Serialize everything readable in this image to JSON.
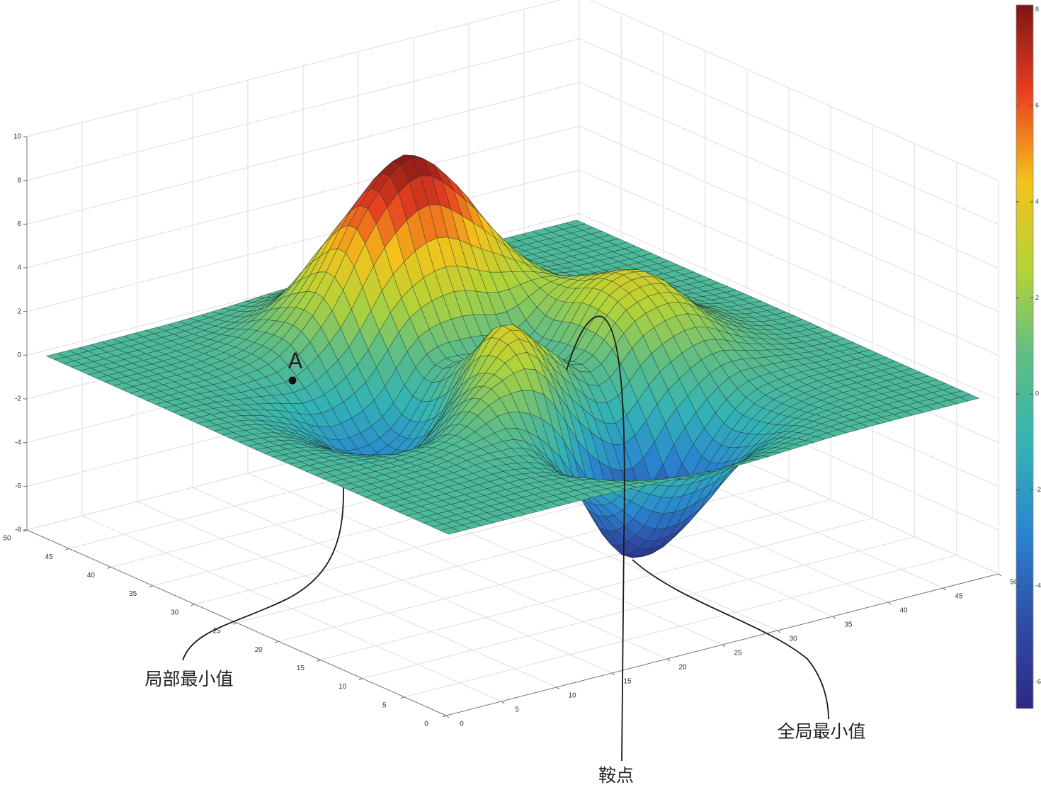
{
  "chart_data": {
    "type": "surface",
    "x": [
      1,
      5,
      9,
      13,
      17,
      21,
      25,
      29,
      33,
      37,
      41,
      45,
      49
    ],
    "y": [
      1,
      5,
      9,
      13,
      17,
      21,
      25,
      29,
      33,
      37,
      41,
      45,
      49
    ],
    "z": [
      [
        0,
        0,
        0,
        0,
        -0.03,
        -0.14,
        -0.24,
        -0.22,
        -0.11,
        -0.03,
        0,
        0,
        0
      ],
      [
        0,
        0,
        0.01,
        0,
        -0.23,
        -0.91,
        -1.57,
        -1.41,
        -0.69,
        -0.18,
        -0.03,
        0,
        0
      ],
      [
        0,
        0.01,
        0.05,
        0.05,
        -0.59,
        -2.63,
        -4.75,
        -4.34,
        -2.1,
        -0.53,
        -0.06,
        0,
        0
      ],
      [
        0,
        0.01,
        0.08,
        0.33,
        0.15,
        -2.19,
        -5.68,
        -5.76,
        -2.63,
        -0.44,
        0.04,
        0.03,
        0
      ],
      [
        -0.01,
        -0.06,
        -0.13,
        0.3,
        1.86,
        2.22,
        -0.72,
        -2.22,
        -0.27,
        0.88,
        0.5,
        0.11,
        0.01
      ],
      [
        -0.03,
        -0.2,
        -0.8,
        -1.21,
        0.8,
        3.55,
        2,
        0.39,
        2.2,
        2.56,
        1.12,
        0.24,
        0.03
      ],
      [
        -0.04,
        -0.3,
        -1.33,
        -2.77,
        -1.65,
        1.48,
        0.98,
        0.37,
        2.94,
        3.27,
        1.41,
        0.3,
        0.03
      ],
      [
        -0.03,
        -0.25,
        -1.12,
        -2.49,
        -2,
        0.39,
        0.46,
        0.38,
        2.38,
        2.56,
        1.09,
        0.23,
        0.03
      ],
      [
        -0.01,
        -0.11,
        -0.48,
        -0.86,
        0.23,
        2.79,
        3.69,
        2.93,
        2.43,
        1.58,
        0.58,
        0.11,
        0.01
      ],
      [
        0,
        -0.02,
        -0.01,
        0.48,
        2.61,
        6.2,
        8,
        6.25,
        3.25,
        1.19,
        0.29,
        0.05,
        0
      ],
      [
        0,
        0.01,
        0.08,
        0.55,
        2.09,
        4.55,
        5.85,
        4.56,
        2.21,
        0.68,
        0.13,
        0.02,
        0
      ],
      [
        0,
        0,
        0.03,
        0.19,
        0.69,
        1.47,
        1.88,
        1.47,
        0.7,
        0.21,
        0.04,
        0,
        0
      ],
      [
        0,
        0,
        0.01,
        0.03,
        0.11,
        0.23,
        0.3,
        0.23,
        0.11,
        0.03,
        0.01,
        0,
        0
      ]
    ],
    "xlim": [
      0,
      50
    ],
    "ylim": [
      0,
      50
    ],
    "zlim": [
      -8,
      10
    ],
    "xticks": [
      0,
      5,
      10,
      15,
      20,
      25,
      30,
      35,
      40,
      45,
      50
    ],
    "yticks": [
      0,
      5,
      10,
      15,
      20,
      25,
      30,
      35,
      40,
      45,
      50
    ],
    "zticks": [
      -8,
      -6,
      -4,
      -2,
      0,
      2,
      4,
      6,
      8,
      10
    ],
    "clim": [
      -6.55,
      8.1
    ],
    "colorbar_ticks": [
      -6,
      -4,
      -2,
      0,
      2,
      4,
      6,
      8
    ],
    "colormap": [
      "#2c2a86",
      "#2f4ea8",
      "#2a86d0",
      "#33b3b5",
      "#5fbd86",
      "#b5d336",
      "#f5c21b",
      "#e8401f",
      "#7f1416"
    ],
    "grid": true,
    "annotations": [
      {
        "text": "A"
      },
      {
        "text": "局部最小值"
      },
      {
        "text": "鞍点"
      },
      {
        "text": "全局最小值"
      }
    ]
  }
}
